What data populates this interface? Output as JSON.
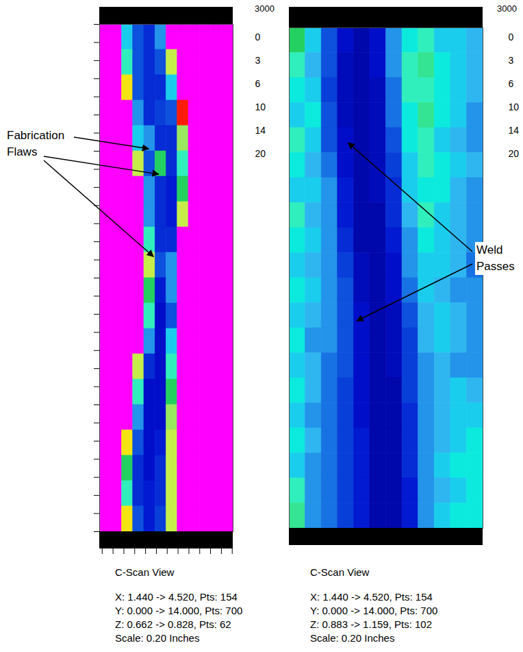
{
  "chart_data": [
    {
      "type": "heatmap",
      "title": "C-Scan View",
      "info": [
        "X: 1.440 -> 4.520, Pts: 154",
        "Y: 0.000 -> 14.000, Pts: 700",
        "Z: 0.662 -> 0.828, Pts: 62",
        "Scale:  0.20 Inches"
      ],
      "xlim": [
        1.44,
        4.52
      ],
      "ylim": [
        0,
        14
      ],
      "xticks": [
        1.5,
        1.75,
        2,
        2.25,
        2.5,
        2.75,
        3,
        3.25,
        3.5,
        3.75,
        4,
        4.25,
        4.5
      ],
      "yticks": [
        0,
        0.5,
        1,
        1.5,
        2,
        2.5,
        3,
        3.5,
        4,
        4.5,
        5,
        5.5,
        6,
        6.5,
        7,
        7.5,
        8,
        8.5,
        9,
        9.5,
        10,
        10.5,
        11,
        11.5,
        12,
        12.5,
        13,
        13.5,
        14
      ],
      "tick_labels": false,
      "cells": [
        [
          0,
          0,
          10,
          14,
          16,
          12,
          0,
          0,
          0,
          0,
          0,
          0
        ],
        [
          0,
          0,
          8,
          14,
          16,
          14,
          4,
          0,
          0,
          0,
          0,
          0
        ],
        [
          0,
          0,
          3,
          14,
          16,
          16,
          10,
          0,
          0,
          0,
          0,
          0
        ],
        [
          0,
          0,
          0,
          12,
          16,
          15,
          14,
          2,
          0,
          0,
          0,
          0
        ],
        [
          0,
          0,
          0,
          10,
          12,
          16,
          16,
          5,
          0,
          0,
          0,
          0
        ],
        [
          0,
          0,
          0,
          4,
          14,
          6,
          16,
          8,
          0,
          0,
          0,
          0
        ],
        [
          0,
          0,
          0,
          0,
          12,
          16,
          17,
          6,
          0,
          0,
          0,
          0
        ],
        [
          0,
          0,
          0,
          0,
          12,
          16,
          17,
          4,
          0,
          0,
          0,
          0
        ],
        [
          0,
          0,
          0,
          0,
          8,
          16,
          16,
          0,
          0,
          0,
          0,
          0
        ],
        [
          0,
          0,
          0,
          0,
          4,
          14,
          12,
          0,
          0,
          0,
          0,
          0
        ],
        [
          0,
          0,
          0,
          0,
          6,
          17,
          12,
          0,
          0,
          0,
          0,
          0
        ],
        [
          0,
          0,
          0,
          0,
          8,
          18,
          14,
          0,
          0,
          0,
          0,
          0
        ],
        [
          0,
          0,
          0,
          0,
          12,
          18,
          10,
          0,
          0,
          0,
          0,
          0
        ],
        [
          0,
          0,
          0,
          4,
          16,
          18,
          8,
          0,
          0,
          0,
          0,
          0
        ],
        [
          0,
          0,
          0,
          8,
          18,
          18,
          6,
          0,
          0,
          0,
          0,
          0
        ],
        [
          0,
          0,
          0,
          12,
          18,
          18,
          5,
          0,
          0,
          0,
          0,
          0
        ],
        [
          0,
          0,
          3,
          14,
          18,
          17,
          4,
          0,
          0,
          0,
          0,
          0
        ],
        [
          0,
          0,
          6,
          16,
          18,
          16,
          4,
          0,
          0,
          0,
          0,
          0
        ],
        [
          0,
          0,
          8,
          16,
          17,
          16,
          4,
          0,
          0,
          0,
          0,
          0
        ],
        [
          0,
          0,
          3,
          14,
          17,
          15,
          4,
          0,
          0,
          0,
          0,
          0
        ]
      ],
      "color_range": [
        0,
        24
      ],
      "color_ticks": [
        0,
        3,
        6,
        10,
        14,
        20
      ],
      "color_label": "3000",
      "annotations": [
        {
          "text": "Fabrication Flaws",
          "points": [
            [
              2.66,
              3.46
            ],
            [
              2.89,
              4.16
            ],
            [
              2.75,
              6.48
            ]
          ]
        }
      ]
    },
    {
      "type": "heatmap",
      "title": "C-Scan View",
      "info": [
        "X: 1.440 -> 4.520, Pts: 154",
        "Y: 0.000 -> 14.000, Pts: 700",
        "Z: 0.883 -> 1.159, Pts: 102",
        "Scale:  0.20 Inches"
      ],
      "xlim": [
        1.44,
        4.52
      ],
      "ylim": [
        0,
        14
      ],
      "tick_labels": false,
      "cells": [
        [
          6,
          10,
          14,
          18,
          20,
          18,
          12,
          9,
          8,
          10,
          10,
          11
        ],
        [
          8,
          11,
          14,
          19,
          20,
          18,
          12,
          8,
          7,
          9,
          10,
          11
        ],
        [
          9,
          10,
          15,
          19,
          20,
          19,
          13,
          8,
          8,
          9,
          10,
          11
        ],
        [
          10,
          9,
          14,
          19,
          20,
          19,
          13,
          9,
          7,
          9,
          10,
          12
        ],
        [
          8,
          10,
          14,
          18,
          20,
          19,
          14,
          9,
          8,
          10,
          11,
          12
        ],
        [
          9,
          11,
          13,
          18,
          20,
          19,
          15,
          10,
          8,
          9,
          10,
          11
        ],
        [
          10,
          10,
          12,
          17,
          20,
          19,
          16,
          10,
          9,
          9,
          11,
          12
        ],
        [
          8,
          11,
          12,
          17,
          20,
          20,
          16,
          11,
          8,
          10,
          11,
          12
        ],
        [
          9,
          10,
          12,
          16,
          20,
          20,
          17,
          12,
          9,
          10,
          11,
          12
        ],
        [
          10,
          11,
          12,
          15,
          19,
          20,
          18,
          12,
          10,
          10,
          11,
          13
        ],
        [
          9,
          10,
          12,
          14,
          19,
          20,
          18,
          13,
          10,
          11,
          12,
          12
        ],
        [
          10,
          11,
          12,
          14,
          18,
          20,
          19,
          14,
          11,
          10,
          11,
          12
        ],
        [
          9,
          12,
          12,
          14,
          18,
          20,
          19,
          15,
          11,
          10,
          11,
          12
        ],
        [
          10,
          11,
          13,
          14,
          18,
          20,
          19,
          15,
          12,
          11,
          12,
          12
        ],
        [
          9,
          11,
          13,
          15,
          18,
          20,
          20,
          15,
          12,
          11,
          10,
          11
        ],
        [
          10,
          12,
          13,
          15,
          18,
          20,
          20,
          16,
          12,
          11,
          10,
          10
        ],
        [
          9,
          11,
          13,
          15,
          17,
          20,
          20,
          16,
          12,
          11,
          10,
          9
        ],
        [
          10,
          12,
          13,
          15,
          17,
          20,
          20,
          16,
          12,
          10,
          9,
          9
        ],
        [
          8,
          12,
          13,
          15,
          17,
          20,
          20,
          17,
          12,
          11,
          10,
          9
        ],
        [
          7,
          12,
          13,
          15,
          17,
          20,
          20,
          17,
          12,
          10,
          9,
          9
        ]
      ],
      "color_range": [
        0,
        24
      ],
      "color_ticks": [
        0,
        3,
        6,
        10,
        14,
        20
      ],
      "color_label": "3000",
      "annotations": [
        {
          "text": "Weld Passes",
          "points": [
            [
              2.34,
              3.16
            ],
            [
              2.47,
              8.25
            ]
          ]
        }
      ]
    }
  ]
}
